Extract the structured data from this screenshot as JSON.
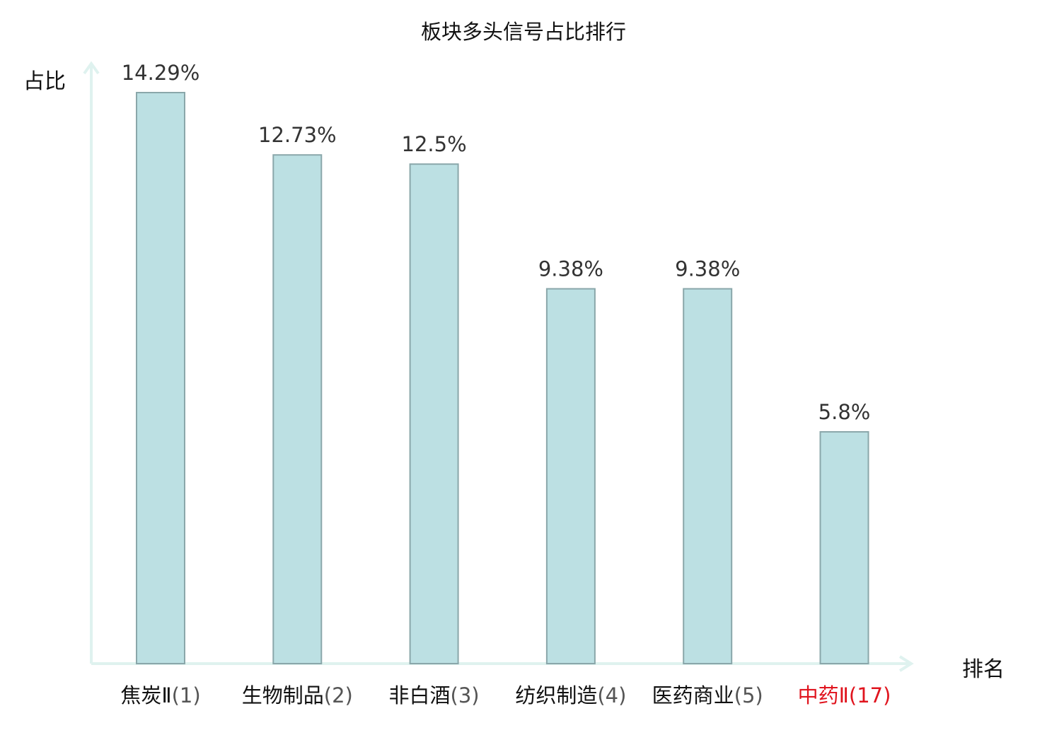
{
  "chart_data": {
    "type": "bar",
    "title": "板块多头信号占比排行",
    "ylabel": "占比",
    "xlabel": "排名",
    "grid": false,
    "ylim": [
      0,
      14.29
    ],
    "categories": [
      {
        "name": "焦炭Ⅱ",
        "rank": "(1)",
        "highlight": false
      },
      {
        "name": "生物制品",
        "rank": "(2)",
        "highlight": false
      },
      {
        "name": "非白酒",
        "rank": "(3)",
        "highlight": false
      },
      {
        "name": "纺织制造",
        "rank": "(4)",
        "highlight": false
      },
      {
        "name": "医药商业",
        "rank": "(5)",
        "highlight": false
      },
      {
        "name": "中药Ⅱ",
        "rank": "(17)",
        "highlight": true
      }
    ],
    "values": [
      14.29,
      12.73,
      12.5,
      9.38,
      9.38,
      5.8
    ],
    "value_labels": [
      "14.29%",
      "12.73%",
      "12.5%",
      "9.38%",
      "9.38%",
      "5.8%"
    ],
    "colors": {
      "bar_fill": "#bce0e3",
      "bar_stroke": "#8aa7aa",
      "axis": "#dff2ef",
      "highlight_text": "#e0141e",
      "rank_text": "#555555"
    }
  }
}
